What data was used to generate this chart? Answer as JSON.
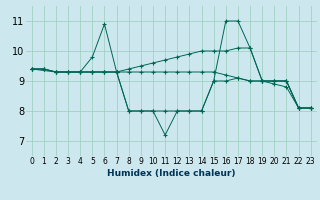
{
  "xlabel": "Humidex (Indice chaleur)",
  "bg_color": "#cce8ee",
  "grid_color": "#99ccbb",
  "line_color": "#006655",
  "xlim": [
    -0.5,
    23.5
  ],
  "ylim": [
    6.5,
    11.5
  ],
  "xticks": [
    0,
    1,
    2,
    3,
    4,
    5,
    6,
    7,
    8,
    9,
    10,
    11,
    12,
    13,
    14,
    15,
    16,
    17,
    18,
    19,
    20,
    21,
    22,
    23
  ],
  "yticks": [
    7,
    8,
    9,
    10,
    11
  ],
  "lines": [
    {
      "x": [
        0,
        1,
        2,
        3,
        4,
        5,
        6,
        7,
        8,
        9,
        10,
        11,
        12,
        13,
        14,
        15,
        16,
        17,
        18,
        19,
        20,
        21,
        22,
        23
      ],
      "y": [
        9.4,
        9.4,
        9.3,
        9.3,
        9.3,
        9.3,
        9.3,
        9.3,
        9.3,
        9.3,
        9.3,
        9.3,
        9.3,
        9.3,
        9.3,
        9.3,
        9.2,
        9.1,
        9.0,
        9.0,
        8.9,
        8.8,
        8.1,
        8.1
      ]
    },
    {
      "x": [
        0,
        2,
        4,
        5,
        6,
        7,
        8,
        9,
        10,
        11,
        12,
        13,
        14,
        15,
        16,
        17,
        18,
        19,
        20,
        21,
        22,
        23
      ],
      "y": [
        9.4,
        9.3,
        9.3,
        9.8,
        10.9,
        9.3,
        8.0,
        8.0,
        8.0,
        7.2,
        8.0,
        8.0,
        8.0,
        9.0,
        11.0,
        11.0,
        10.1,
        9.0,
        9.0,
        9.0,
        8.1,
        8.1
      ]
    },
    {
      "x": [
        0,
        1,
        2,
        3,
        4,
        5,
        6,
        7,
        8,
        9,
        10,
        11,
        12,
        13,
        14,
        15,
        16,
        17,
        18,
        19,
        20,
        21,
        22,
        23
      ],
      "y": [
        9.4,
        9.4,
        9.3,
        9.3,
        9.3,
        9.3,
        9.3,
        9.3,
        9.4,
        9.5,
        9.6,
        9.7,
        9.8,
        9.9,
        10.0,
        10.0,
        10.0,
        10.1,
        10.1,
        9.0,
        9.0,
        9.0,
        8.1,
        8.1
      ]
    },
    {
      "x": [
        0,
        1,
        2,
        3,
        4,
        5,
        6,
        7,
        8,
        9,
        10,
        11,
        12,
        13,
        14,
        15,
        16,
        17,
        18,
        19,
        20,
        21,
        22,
        23
      ],
      "y": [
        9.4,
        9.4,
        9.3,
        9.3,
        9.3,
        9.3,
        9.3,
        9.3,
        8.0,
        8.0,
        8.0,
        8.0,
        8.0,
        8.0,
        8.0,
        9.0,
        9.0,
        9.1,
        9.0,
        9.0,
        9.0,
        9.0,
        8.1,
        8.1
      ]
    }
  ]
}
